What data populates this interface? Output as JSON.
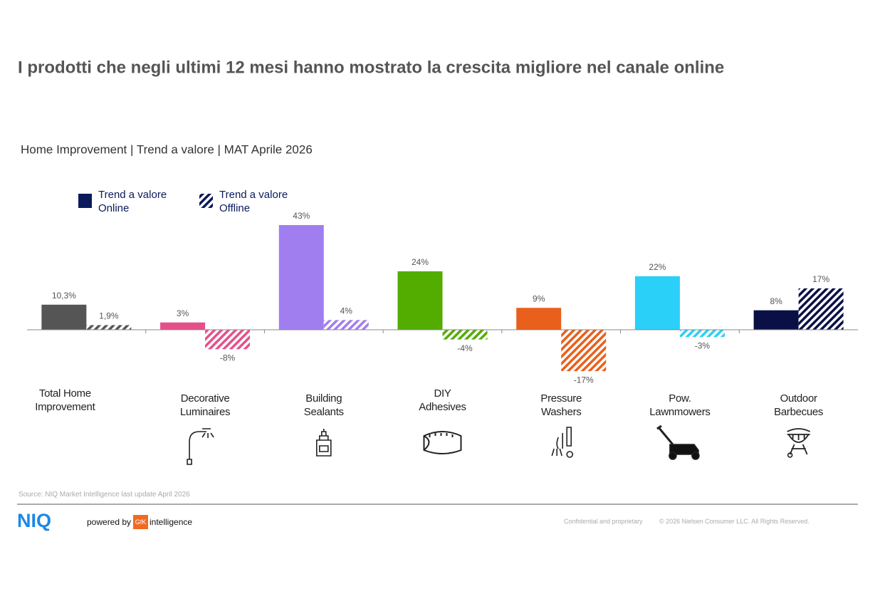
{
  "title": "I prodotti che negli ultimi 12 mesi hanno mostrato la crescita migliore nel canale online",
  "chart_data": {
    "type": "bar",
    "subtitle": "Home Improvement | Trend a valore | MAT Aprile 2026",
    "categories": [
      "Total Home Improvement",
      "Decorative Luminaires",
      "Building Sealants",
      "DIY Adhesives",
      "Pressure Washers",
      "Pow. Lawnmowers",
      "Outdoor Barbecues"
    ],
    "series": [
      {
        "name": "Trend a valore Online",
        "color": "#0a1a5c",
        "pattern": "solid",
        "colors": [
          "#555555",
          "#e5508a",
          "#a07ef0",
          "#52ad00",
          "#e8601c",
          "#2ad0f8",
          "#0a1045"
        ],
        "values": [
          10.3,
          3,
          43,
          24,
          9,
          22,
          8
        ],
        "value_labels": [
          "10,3%",
          "3%",
          "43%",
          "24%",
          "9%",
          "22%",
          "8%"
        ]
      },
      {
        "name": "Trend a valore Offline",
        "color": "#0a1a5c",
        "pattern": "hatch",
        "colors": [
          "#555555",
          "#e5508a",
          "#a07ef0",
          "#52ad00",
          "#e8601c",
          "#2ad0f8",
          "#0a1045"
        ],
        "values": [
          1.9,
          -8,
          4,
          -4,
          -17,
          -3,
          17
        ],
        "value_labels": [
          "1,9%",
          "-8%",
          "4%",
          "-4%",
          "-17%",
          "-3%",
          "17%"
        ]
      }
    ]
  },
  "source": "Source: NIQ Market Intelligence last update April 2026",
  "footer": {
    "logo": "NIQ",
    "powered": "powered by",
    "gfk": "GfK",
    "intelligence": "intelligence",
    "confidential": "Confidential and proprietary",
    "copyright": "© 2026 Nielsen Consumer LLC. All Rights Reserved."
  }
}
